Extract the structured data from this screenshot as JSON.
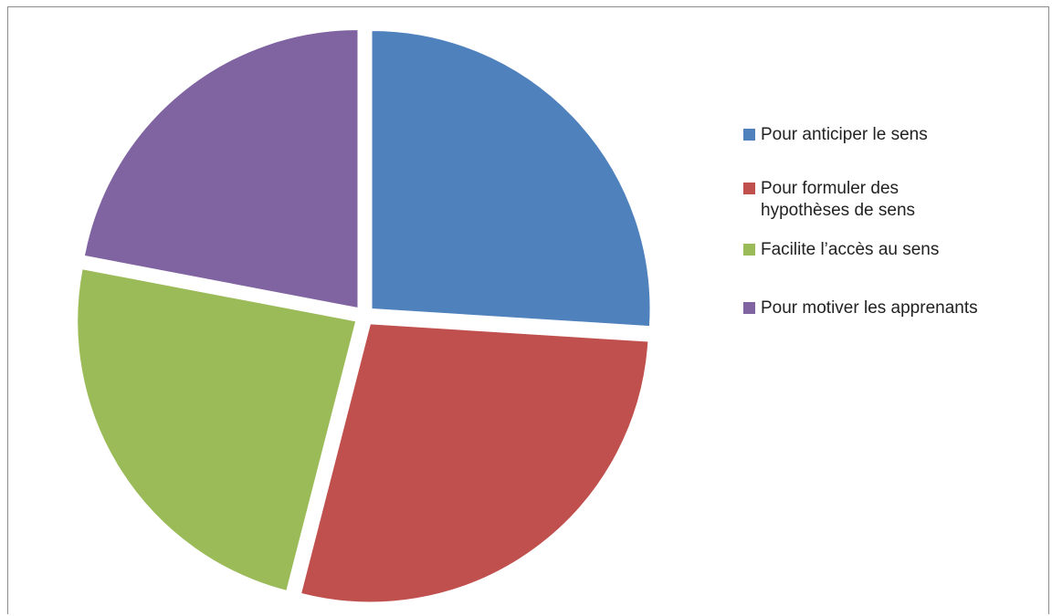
{
  "chart_data": {
    "type": "pie",
    "title": "",
    "start_angle_deg": 0,
    "direction": "clockwise",
    "exploded": true,
    "legend_position": "right",
    "slices": [
      {
        "label": "Pour anticiper le sens",
        "value": 26,
        "color": "#4F81BD"
      },
      {
        "label": "Pour formuler des\nhypothèses de sens",
        "value": 28,
        "color": "#C0504D"
      },
      {
        "label": "Facilite l’accès au sens",
        "value": 24,
        "color": "#9BBB59"
      },
      {
        "label": "Pour motiver les apprenants",
        "value": 22,
        "color": "#8064A2"
      }
    ]
  }
}
